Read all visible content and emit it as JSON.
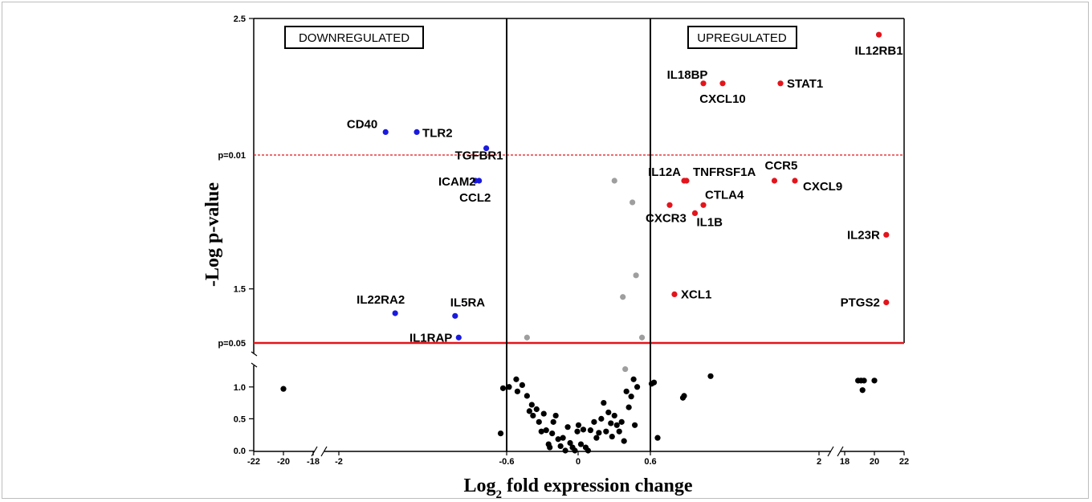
{
  "chart_data": {
    "type": "scatter",
    "title": "",
    "xlabel_main": "Log",
    "xlabel_sub": "2",
    "xlabel_rest": " fold expression change",
    "ylabel": "-Log p-value",
    "x_tick_labels_left": [
      "-22",
      "-20",
      "-18",
      "-2",
      "-0.6",
      "0",
      "0.6",
      "2",
      "18",
      "20",
      "22"
    ],
    "y_tick_labels_lower": [
      "0.0",
      "0.5",
      "1.0"
    ],
    "y_tick_labels_upper": [
      "1.5",
      "2.5"
    ],
    "threshold_labels": {
      "p001": "p=0.01",
      "p005": "p=0.05"
    },
    "fold_thresholds": [
      -0.6,
      0.6
    ],
    "region_labels": {
      "down": "DOWNREGULATED",
      "up": "UPREGULATED"
    },
    "colors": {
      "up": "#e3141b",
      "down": "#1a1adf",
      "ns_gray": "#9e9e9e",
      "ns_black": "#000000",
      "threshold_line": "#e3141b"
    },
    "upregulated": [
      {
        "gene": "IL12RB1",
        "x": 20.3,
        "y": 2.44
      },
      {
        "gene": "IL18BP",
        "x": 1.04,
        "y": 2.26
      },
      {
        "gene": "CXCL10",
        "x": 1.2,
        "y": 2.26
      },
      {
        "gene": "STAT1",
        "x": 1.68,
        "y": 2.26
      },
      {
        "gene": "IL12A",
        "x": 0.88,
        "y": 1.9
      },
      {
        "gene": "TNFRSF1A",
        "x": 0.9,
        "y": 1.9
      },
      {
        "gene": "CCR5",
        "x": 1.63,
        "y": 1.9
      },
      {
        "gene": "CXCL9",
        "x": 1.8,
        "y": 1.9
      },
      {
        "gene": "CTLA4",
        "x": 1.04,
        "y": 1.81
      },
      {
        "gene": "CXCR3",
        "x": 0.76,
        "y": 1.81
      },
      {
        "gene": "IL1B",
        "x": 0.97,
        "y": 1.78
      },
      {
        "gene": "IL23R",
        "x": 20.8,
        "y": 1.7
      },
      {
        "gene": "XCL1",
        "x": 0.8,
        "y": 1.48
      },
      {
        "gene": "PTGS2",
        "x": 20.8,
        "y": 1.45
      }
    ],
    "downregulated": [
      {
        "gene": "CD40",
        "x": -1.61,
        "y": 2.08
      },
      {
        "gene": "TLR2",
        "x": -1.35,
        "y": 2.08
      },
      {
        "gene": "TGFBR1",
        "x": -0.77,
        "y": 2.02
      },
      {
        "gene": "ICAM2",
        "x": -0.83,
        "y": 1.9
      },
      {
        "gene": "CCL2",
        "x": -0.86,
        "y": 1.9
      },
      {
        "gene": "IL22RA2",
        "x": -1.53,
        "y": 1.41
      },
      {
        "gene": "IL5RA",
        "x": -1.03,
        "y": 1.4
      },
      {
        "gene": "IL1RAP",
        "x": -1.0,
        "y": 1.32
      }
    ],
    "nonsignificant_gray": [
      {
        "x": 0.3,
        "y": 1.9
      },
      {
        "x": 0.45,
        "y": 1.82
      },
      {
        "x": 0.48,
        "y": 1.55
      },
      {
        "x": 0.37,
        "y": 1.47
      },
      {
        "x": -0.43,
        "y": 1.32
      },
      {
        "x": 0.53,
        "y": 1.32
      },
      {
        "x": 0.39,
        "y": 1.28
      }
    ],
    "nonsignificant_black": [
      {
        "x": -20.0,
        "y": 0.97
      },
      {
        "x": -0.65,
        "y": 0.27
      },
      {
        "x": -0.58,
        "y": 1.0
      },
      {
        "x": -0.63,
        "y": 0.98
      },
      {
        "x": -0.52,
        "y": 1.12
      },
      {
        "x": -0.51,
        "y": 0.93
      },
      {
        "x": -0.47,
        "y": 1.03
      },
      {
        "x": -0.43,
        "y": 0.86
      },
      {
        "x": -0.41,
        "y": 0.62
      },
      {
        "x": -0.39,
        "y": 0.72
      },
      {
        "x": -0.38,
        "y": 0.55
      },
      {
        "x": -0.35,
        "y": 0.65
      },
      {
        "x": -0.33,
        "y": 0.45
      },
      {
        "x": -0.31,
        "y": 0.3
      },
      {
        "x": -0.29,
        "y": 0.58
      },
      {
        "x": -0.27,
        "y": 0.32
      },
      {
        "x": -0.25,
        "y": 0.1
      },
      {
        "x": -0.24,
        "y": 0.05
      },
      {
        "x": -0.22,
        "y": 0.27
      },
      {
        "x": -0.21,
        "y": 0.45
      },
      {
        "x": -0.19,
        "y": 0.55
      },
      {
        "x": -0.17,
        "y": 0.18
      },
      {
        "x": -0.15,
        "y": 0.07
      },
      {
        "x": -0.13,
        "y": 0.2
      },
      {
        "x": -0.11,
        "y": 0.0
      },
      {
        "x": -0.09,
        "y": 0.37
      },
      {
        "x": -0.07,
        "y": 0.12
      },
      {
        "x": -0.05,
        "y": 0.05
      },
      {
        "x": -0.03,
        "y": 0.0
      },
      {
        "x": -0.01,
        "y": 0.3
      },
      {
        "x": 0.0,
        "y": 0.4
      },
      {
        "x": 0.02,
        "y": 0.1
      },
      {
        "x": 0.04,
        "y": 0.33
      },
      {
        "x": 0.06,
        "y": 0.05
      },
      {
        "x": 0.08,
        "y": 0.0
      },
      {
        "x": 0.1,
        "y": 0.32
      },
      {
        "x": 0.13,
        "y": 0.45
      },
      {
        "x": 0.15,
        "y": 0.2
      },
      {
        "x": 0.17,
        "y": 0.28
      },
      {
        "x": 0.19,
        "y": 0.5
      },
      {
        "x": 0.21,
        "y": 0.75
      },
      {
        "x": 0.23,
        "y": 0.3
      },
      {
        "x": 0.25,
        "y": 0.6
      },
      {
        "x": 0.27,
        "y": 0.43
      },
      {
        "x": 0.28,
        "y": 0.22
      },
      {
        "x": 0.3,
        "y": 0.55
      },
      {
        "x": 0.32,
        "y": 0.4
      },
      {
        "x": 0.34,
        "y": 0.3
      },
      {
        "x": 0.36,
        "y": 0.45
      },
      {
        "x": 0.38,
        "y": 0.15
      },
      {
        "x": 0.4,
        "y": 0.93
      },
      {
        "x": 0.42,
        "y": 0.68
      },
      {
        "x": 0.44,
        "y": 0.85
      },
      {
        "x": 0.46,
        "y": 1.12
      },
      {
        "x": 0.47,
        "y": 0.4
      },
      {
        "x": 0.49,
        "y": 1.0
      },
      {
        "x": 0.61,
        "y": 1.05
      },
      {
        "x": 0.63,
        "y": 1.07
      },
      {
        "x": 0.66,
        "y": 0.2
      },
      {
        "x": 0.87,
        "y": 0.83
      },
      {
        "x": 0.88,
        "y": 0.86
      },
      {
        "x": 1.1,
        "y": 1.17
      },
      {
        "x": 18.9,
        "y": 1.1
      },
      {
        "x": 19.1,
        "y": 1.1
      },
      {
        "x": 19.3,
        "y": 1.1
      },
      {
        "x": 19.2,
        "y": 0.95
      },
      {
        "x": 20.0,
        "y": 1.1
      }
    ]
  }
}
